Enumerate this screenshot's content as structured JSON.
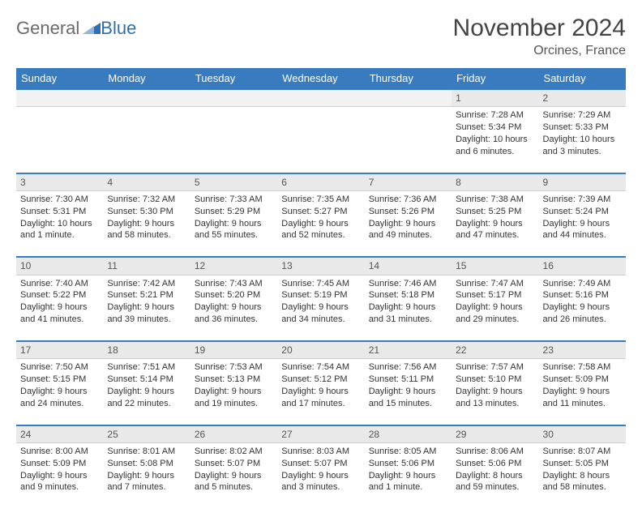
{
  "brand": {
    "word1": "General",
    "word2": "Blue"
  },
  "title": "November 2024",
  "subtitle": "Orcines, France",
  "colors": {
    "header_bg": "#387bbf",
    "header_text": "#ffffff",
    "daynum_bg": "#e9e9e9",
    "border": "#387bbf",
    "brand_gray": "#6a6a6a",
    "brand_blue": "#2f6fb0"
  },
  "weekdays": [
    "Sunday",
    "Monday",
    "Tuesday",
    "Wednesday",
    "Thursday",
    "Friday",
    "Saturday"
  ],
  "weeks": [
    {
      "nums": [
        "",
        "",
        "",
        "",
        "",
        "1",
        "2"
      ],
      "cells": [
        null,
        null,
        null,
        null,
        null,
        {
          "sunrise": "7:28 AM",
          "sunset": "5:34 PM",
          "daylight": "10 hours and 6 minutes."
        },
        {
          "sunrise": "7:29 AM",
          "sunset": "5:33 PM",
          "daylight": "10 hours and 3 minutes."
        }
      ]
    },
    {
      "nums": [
        "3",
        "4",
        "5",
        "6",
        "7",
        "8",
        "9"
      ],
      "cells": [
        {
          "sunrise": "7:30 AM",
          "sunset": "5:31 PM",
          "daylight": "10 hours and 1 minute."
        },
        {
          "sunrise": "7:32 AM",
          "sunset": "5:30 PM",
          "daylight": "9 hours and 58 minutes."
        },
        {
          "sunrise": "7:33 AM",
          "sunset": "5:29 PM",
          "daylight": "9 hours and 55 minutes."
        },
        {
          "sunrise": "7:35 AM",
          "sunset": "5:27 PM",
          "daylight": "9 hours and 52 minutes."
        },
        {
          "sunrise": "7:36 AM",
          "sunset": "5:26 PM",
          "daylight": "9 hours and 49 minutes."
        },
        {
          "sunrise": "7:38 AM",
          "sunset": "5:25 PM",
          "daylight": "9 hours and 47 minutes."
        },
        {
          "sunrise": "7:39 AM",
          "sunset": "5:24 PM",
          "daylight": "9 hours and 44 minutes."
        }
      ]
    },
    {
      "nums": [
        "10",
        "11",
        "12",
        "13",
        "14",
        "15",
        "16"
      ],
      "cells": [
        {
          "sunrise": "7:40 AM",
          "sunset": "5:22 PM",
          "daylight": "9 hours and 41 minutes."
        },
        {
          "sunrise": "7:42 AM",
          "sunset": "5:21 PM",
          "daylight": "9 hours and 39 minutes."
        },
        {
          "sunrise": "7:43 AM",
          "sunset": "5:20 PM",
          "daylight": "9 hours and 36 minutes."
        },
        {
          "sunrise": "7:45 AM",
          "sunset": "5:19 PM",
          "daylight": "9 hours and 34 minutes."
        },
        {
          "sunrise": "7:46 AM",
          "sunset": "5:18 PM",
          "daylight": "9 hours and 31 minutes."
        },
        {
          "sunrise": "7:47 AM",
          "sunset": "5:17 PM",
          "daylight": "9 hours and 29 minutes."
        },
        {
          "sunrise": "7:49 AM",
          "sunset": "5:16 PM",
          "daylight": "9 hours and 26 minutes."
        }
      ]
    },
    {
      "nums": [
        "17",
        "18",
        "19",
        "20",
        "21",
        "22",
        "23"
      ],
      "cells": [
        {
          "sunrise": "7:50 AM",
          "sunset": "5:15 PM",
          "daylight": "9 hours and 24 minutes."
        },
        {
          "sunrise": "7:51 AM",
          "sunset": "5:14 PM",
          "daylight": "9 hours and 22 minutes."
        },
        {
          "sunrise": "7:53 AM",
          "sunset": "5:13 PM",
          "daylight": "9 hours and 19 minutes."
        },
        {
          "sunrise": "7:54 AM",
          "sunset": "5:12 PM",
          "daylight": "9 hours and 17 minutes."
        },
        {
          "sunrise": "7:56 AM",
          "sunset": "5:11 PM",
          "daylight": "9 hours and 15 minutes."
        },
        {
          "sunrise": "7:57 AM",
          "sunset": "5:10 PM",
          "daylight": "9 hours and 13 minutes."
        },
        {
          "sunrise": "7:58 AM",
          "sunset": "5:09 PM",
          "daylight": "9 hours and 11 minutes."
        }
      ]
    },
    {
      "nums": [
        "24",
        "25",
        "26",
        "27",
        "28",
        "29",
        "30"
      ],
      "cells": [
        {
          "sunrise": "8:00 AM",
          "sunset": "5:09 PM",
          "daylight": "9 hours and 9 minutes."
        },
        {
          "sunrise": "8:01 AM",
          "sunset": "5:08 PM",
          "daylight": "9 hours and 7 minutes."
        },
        {
          "sunrise": "8:02 AM",
          "sunset": "5:07 PM",
          "daylight": "9 hours and 5 minutes."
        },
        {
          "sunrise": "8:03 AM",
          "sunset": "5:07 PM",
          "daylight": "9 hours and 3 minutes."
        },
        {
          "sunrise": "8:05 AM",
          "sunset": "5:06 PM",
          "daylight": "9 hours and 1 minute."
        },
        {
          "sunrise": "8:06 AM",
          "sunset": "5:06 PM",
          "daylight": "8 hours and 59 minutes."
        },
        {
          "sunrise": "8:07 AM",
          "sunset": "5:05 PM",
          "daylight": "8 hours and 58 minutes."
        }
      ]
    }
  ],
  "labels": {
    "sunrise": "Sunrise:",
    "sunset": "Sunset:",
    "daylight": "Daylight:"
  }
}
